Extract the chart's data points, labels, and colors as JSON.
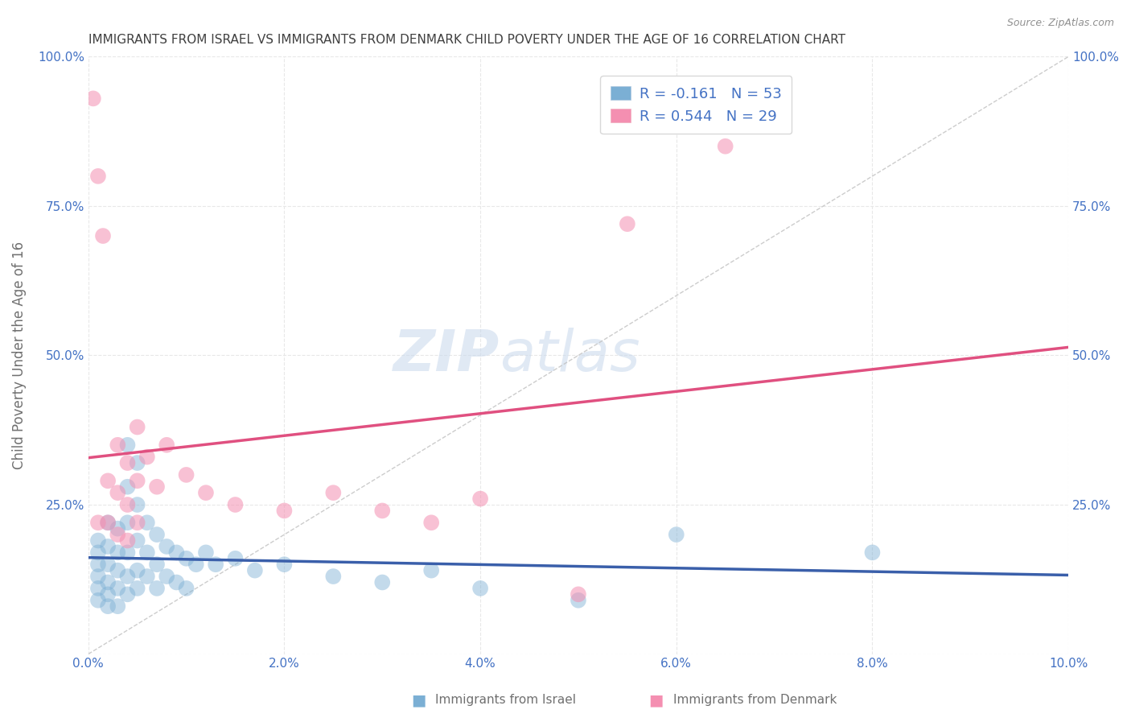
{
  "title": "IMMIGRANTS FROM ISRAEL VS IMMIGRANTS FROM DENMARK CHILD POVERTY UNDER THE AGE OF 16 CORRELATION CHART",
  "source": "Source: ZipAtlas.com",
  "ylabel": "Child Poverty Under the Age of 16",
  "xlim": [
    0.0,
    0.1
  ],
  "ylim": [
    0.0,
    1.0
  ],
  "xtick_labels": [
    "0.0%",
    "2.0%",
    "4.0%",
    "6.0%",
    "8.0%",
    "10.0%"
  ],
  "xtick_vals": [
    0.0,
    0.02,
    0.04,
    0.06,
    0.08,
    0.1
  ],
  "ytick_labels": [
    "",
    "25.0%",
    "50.0%",
    "75.0%",
    "100.0%"
  ],
  "ytick_vals": [
    0.0,
    0.25,
    0.5,
    0.75,
    1.0
  ],
  "israel_color": "#7bafd4",
  "denmark_color": "#f48fb1",
  "israel_line_color": "#3a5faa",
  "denmark_line_color": "#e05080",
  "ref_line_color": "#c0c0c0",
  "watermark_zip": "ZIP",
  "watermark_atlas": "atlas",
  "background_color": "#ffffff",
  "grid_color": "#e8e8e8",
  "title_color": "#404040",
  "axis_label_color": "#707070",
  "tick_label_color": "#4472c4",
  "legend_label_color": "#4472c4",
  "israel_scatter": [
    [
      0.001,
      0.19
    ],
    [
      0.001,
      0.17
    ],
    [
      0.001,
      0.15
    ],
    [
      0.001,
      0.13
    ],
    [
      0.001,
      0.11
    ],
    [
      0.001,
      0.09
    ],
    [
      0.002,
      0.22
    ],
    [
      0.002,
      0.18
    ],
    [
      0.002,
      0.15
    ],
    [
      0.002,
      0.12
    ],
    [
      0.002,
      0.1
    ],
    [
      0.002,
      0.08
    ],
    [
      0.003,
      0.21
    ],
    [
      0.003,
      0.17
    ],
    [
      0.003,
      0.14
    ],
    [
      0.003,
      0.11
    ],
    [
      0.003,
      0.08
    ],
    [
      0.004,
      0.35
    ],
    [
      0.004,
      0.28
    ],
    [
      0.004,
      0.22
    ],
    [
      0.004,
      0.17
    ],
    [
      0.004,
      0.13
    ],
    [
      0.004,
      0.1
    ],
    [
      0.005,
      0.32
    ],
    [
      0.005,
      0.25
    ],
    [
      0.005,
      0.19
    ],
    [
      0.005,
      0.14
    ],
    [
      0.005,
      0.11
    ],
    [
      0.006,
      0.22
    ],
    [
      0.006,
      0.17
    ],
    [
      0.006,
      0.13
    ],
    [
      0.007,
      0.2
    ],
    [
      0.007,
      0.15
    ],
    [
      0.007,
      0.11
    ],
    [
      0.008,
      0.18
    ],
    [
      0.008,
      0.13
    ],
    [
      0.009,
      0.17
    ],
    [
      0.009,
      0.12
    ],
    [
      0.01,
      0.16
    ],
    [
      0.01,
      0.11
    ],
    [
      0.011,
      0.15
    ],
    [
      0.012,
      0.17
    ],
    [
      0.013,
      0.15
    ],
    [
      0.015,
      0.16
    ],
    [
      0.017,
      0.14
    ],
    [
      0.02,
      0.15
    ],
    [
      0.025,
      0.13
    ],
    [
      0.03,
      0.12
    ],
    [
      0.035,
      0.14
    ],
    [
      0.04,
      0.11
    ],
    [
      0.05,
      0.09
    ],
    [
      0.06,
      0.2
    ],
    [
      0.08,
      0.17
    ]
  ],
  "denmark_scatter": [
    [
      0.0005,
      0.93
    ],
    [
      0.001,
      0.8
    ],
    [
      0.0015,
      0.7
    ],
    [
      0.001,
      0.22
    ],
    [
      0.002,
      0.29
    ],
    [
      0.002,
      0.22
    ],
    [
      0.003,
      0.35
    ],
    [
      0.003,
      0.27
    ],
    [
      0.003,
      0.2
    ],
    [
      0.004,
      0.32
    ],
    [
      0.004,
      0.25
    ],
    [
      0.004,
      0.19
    ],
    [
      0.005,
      0.38
    ],
    [
      0.005,
      0.29
    ],
    [
      0.005,
      0.22
    ],
    [
      0.006,
      0.33
    ],
    [
      0.007,
      0.28
    ],
    [
      0.008,
      0.35
    ],
    [
      0.01,
      0.3
    ],
    [
      0.012,
      0.27
    ],
    [
      0.015,
      0.25
    ],
    [
      0.02,
      0.24
    ],
    [
      0.025,
      0.27
    ],
    [
      0.03,
      0.24
    ],
    [
      0.035,
      0.22
    ],
    [
      0.04,
      0.26
    ],
    [
      0.05,
      0.1
    ],
    [
      0.055,
      0.72
    ],
    [
      0.065,
      0.85
    ]
  ]
}
